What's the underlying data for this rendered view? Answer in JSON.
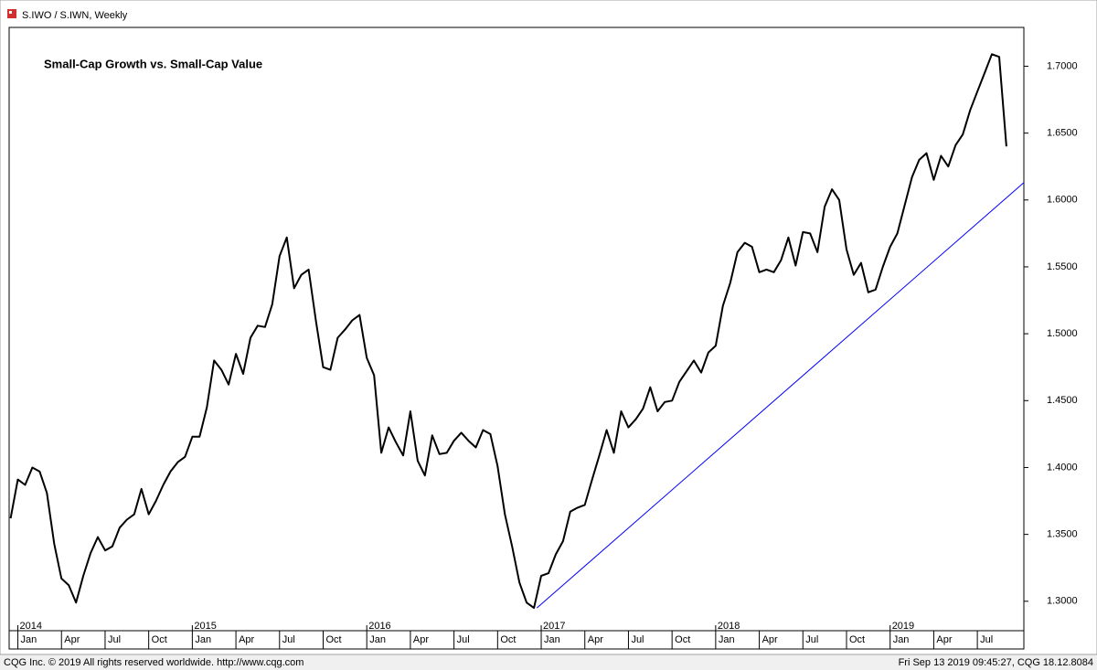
{
  "window_title": "S.IWO / S.IWN, Weekly",
  "footer_left": "CQG Inc. © 2019 All rights reserved worldwide. http://www.cqg.com",
  "footer_right": "Fri Sep 13 2019 09:45:27, CQG 18.12.8084",
  "chart_data": {
    "type": "line",
    "title": "Small-Cap Growth vs. Small-Cap Value",
    "xlim": [
      -0.6,
      69.2
    ],
    "ylim": [
      1.278,
      1.729
    ],
    "yticks": [
      {
        "value": 1.3,
        "label": "1.3000"
      },
      {
        "value": 1.35,
        "label": "1.3500"
      },
      {
        "value": 1.4,
        "label": "1.4000"
      },
      {
        "value": 1.45,
        "label": "1.4500"
      },
      {
        "value": 1.5,
        "label": "1.5000"
      },
      {
        "value": 1.55,
        "label": "1.5500"
      },
      {
        "value": 1.6,
        "label": "1.6000"
      },
      {
        "value": 1.65,
        "label": "1.6500"
      },
      {
        "value": 1.7,
        "label": "1.7000"
      }
    ],
    "xticks": [
      {
        "value": 0,
        "label": "Jan"
      },
      {
        "value": 3,
        "label": "Apr"
      },
      {
        "value": 6,
        "label": "Jul"
      },
      {
        "value": 9,
        "label": "Oct"
      },
      {
        "value": 12,
        "label": "Jan"
      },
      {
        "value": 15,
        "label": "Apr"
      },
      {
        "value": 18,
        "label": "Jul"
      },
      {
        "value": 21,
        "label": "Oct"
      },
      {
        "value": 24,
        "label": "Jan"
      },
      {
        "value": 27,
        "label": "Apr"
      },
      {
        "value": 30,
        "label": "Jul"
      },
      {
        "value": 33,
        "label": "Oct"
      },
      {
        "value": 36,
        "label": "Jan"
      },
      {
        "value": 39,
        "label": "Apr"
      },
      {
        "value": 42,
        "label": "Jul"
      },
      {
        "value": 45,
        "label": "Oct"
      },
      {
        "value": 48,
        "label": "Jan"
      },
      {
        "value": 51,
        "label": "Apr"
      },
      {
        "value": 54,
        "label": "Jul"
      },
      {
        "value": 57,
        "label": "Oct"
      },
      {
        "value": 60,
        "label": "Jan"
      },
      {
        "value": 63,
        "label": "Apr"
      },
      {
        "value": 66,
        "label": "Jul"
      }
    ],
    "year_labels": [
      {
        "value": 0,
        "label": "2014"
      },
      {
        "value": 12,
        "label": "2015"
      },
      {
        "value": 24,
        "label": "2016"
      },
      {
        "value": 36,
        "label": "2017"
      },
      {
        "value": 48,
        "label": "2018"
      },
      {
        "value": 60,
        "label": "2019"
      }
    ],
    "series": [
      {
        "color": "#000000",
        "x": [
          -0.5,
          0,
          0.5,
          1,
          1.5,
          2,
          2.5,
          3,
          3.5,
          4,
          4.5,
          5,
          5.5,
          6,
          6.5,
          7,
          7.5,
          8,
          8.5,
          9,
          9.5,
          10,
          10.5,
          11,
          11.5,
          12,
          12.5,
          13,
          13.5,
          14,
          14.5,
          15,
          15.5,
          16,
          16.5,
          17,
          17.5,
          18,
          18.5,
          19,
          19.5,
          20,
          20.5,
          21,
          21.5,
          22,
          22.5,
          23,
          23.5,
          24,
          24.5,
          25,
          25.5,
          26,
          26.5,
          27,
          27.5,
          28,
          28.5,
          29,
          29.5,
          30,
          30.5,
          31,
          31.5,
          32,
          32.5,
          33,
          33.5,
          34,
          34.5,
          35,
          35.5,
          36,
          36.5,
          37,
          37.5,
          38,
          38.5,
          39,
          39.5,
          40,
          40.5,
          41,
          41.5,
          42,
          42.5,
          43,
          43.5,
          44,
          44.5,
          45,
          45.5,
          46,
          46.5,
          47,
          47.5,
          48,
          48.5,
          49,
          49.5,
          50,
          50.5,
          51,
          51.5,
          52,
          52.5,
          53,
          53.5,
          54,
          54.5,
          55,
          55.5,
          56,
          56.5,
          57,
          57.5,
          58,
          58.5,
          59,
          59.5,
          60,
          60.5,
          61,
          61.5,
          62,
          62.5,
          63,
          63.5,
          64,
          64.5,
          65,
          65.5,
          66,
          66.5,
          67,
          67.5,
          68
        ],
        "values": [
          1.362,
          1.391,
          1.387,
          1.4,
          1.397,
          1.381,
          1.343,
          1.317,
          1.312,
          1.299,
          1.319,
          1.336,
          1.348,
          1.338,
          1.341,
          1.355,
          1.361,
          1.365,
          1.384,
          1.365,
          1.375,
          1.387,
          1.397,
          1.404,
          1.408,
          1.423,
          1.423,
          1.445,
          1.48,
          1.473,
          1.462,
          1.485,
          1.47,
          1.497,
          1.506,
          1.505,
          1.522,
          1.558,
          1.572,
          1.534,
          1.544,
          1.548,
          1.51,
          1.475,
          1.473,
          1.497,
          1.503,
          1.51,
          1.514,
          1.482,
          1.469,
          1.411,
          1.43,
          1.419,
          1.409,
          1.442,
          1.405,
          1.394,
          1.424,
          1.41,
          1.411,
          1.42,
          1.426,
          1.42,
          1.415,
          1.428,
          1.425,
          1.401,
          1.365,
          1.341,
          1.314,
          1.299,
          1.295,
          1.319,
          1.321,
          1.335,
          1.345,
          1.367,
          1.37,
          1.372,
          1.391,
          1.409,
          1.428,
          1.411,
          1.442,
          1.43,
          1.436,
          1.444,
          1.46,
          1.442,
          1.449,
          1.45,
          1.464,
          1.472,
          1.48,
          1.471,
          1.486,
          1.491,
          1.521,
          1.538,
          1.561,
          1.568,
          1.565,
          1.546,
          1.548,
          1.546,
          1.555,
          1.572,
          1.551,
          1.576,
          1.575,
          1.561,
          1.595,
          1.608,
          1.6,
          1.563,
          1.544,
          1.553,
          1.531,
          1.533,
          1.55,
          1.565,
          1.575,
          1.596,
          1.617,
          1.63,
          1.635,
          1.615,
          1.633,
          1.625,
          1.641,
          1.649,
          1.667,
          1.681,
          1.695,
          1.709,
          1.707,
          1.64
        ]
      }
    ],
    "trendline": {
      "color": "#0000ff",
      "x": [
        35.7,
        69.2
      ],
      "values": [
        1.295,
        1.613
      ]
    }
  }
}
